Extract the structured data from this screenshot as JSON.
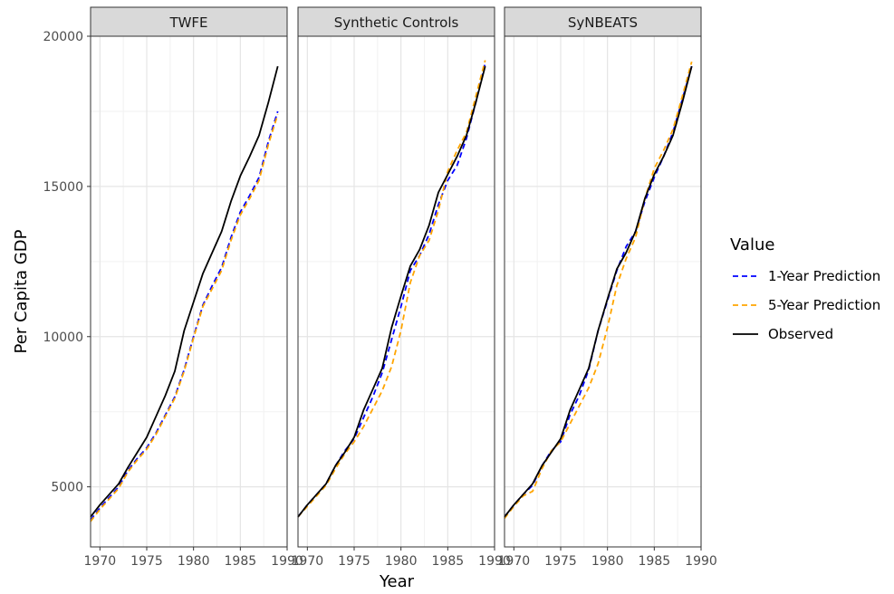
{
  "chart_data": {
    "type": "line",
    "xlabel": "Year",
    "ylabel": "Per Capita GDP",
    "xlim": [
      1969,
      1990
    ],
    "ylim": [
      3000,
      20000
    ],
    "x_ticks": [
      1970,
      1975,
      1980,
      1985,
      1990
    ],
    "y_ticks": [
      5000,
      10000,
      15000,
      20000
    ],
    "grid": true,
    "legend": {
      "title": "Value",
      "position": "right",
      "entries": [
        {
          "label": "1-Year Prediction",
          "color": "#0000ff",
          "dash": "dashed"
        },
        {
          "label": "5-Year Prediction",
          "color": "#ffa500",
          "dash": "dashed"
        },
        {
          "label": "Observed",
          "color": "#000000",
          "dash": "solid"
        }
      ]
    },
    "panels": [
      {
        "title": "TWFE",
        "series": [
          {
            "name": "1-Year Prediction",
            "x": [
              1969,
              1970,
              1971,
              1972,
              1973,
              1974,
              1975,
              1976,
              1977,
              1978,
              1979,
              1980,
              1981,
              1982,
              1983,
              1984,
              1985,
              1986,
              1987,
              1988,
              1989
            ],
            "y": [
              3900,
              4300,
              4650,
              5000,
              5550,
              5950,
              6300,
              6800,
              7400,
              8000,
              8900,
              10000,
              11050,
              11700,
              12300,
              13300,
              14150,
              14700,
              15300,
              16500,
              17500
            ]
          },
          {
            "name": "5-Year Prediction",
            "x": [
              1969,
              1970,
              1971,
              1972,
              1973,
              1974,
              1975,
              1976,
              1977,
              1978,
              1979,
              1980,
              1981,
              1982,
              1983,
              1984,
              1985,
              1986,
              1987,
              1988,
              1989
            ],
            "y": [
              3850,
              4250,
              4600,
              4950,
              5500,
              5900,
              6250,
              6750,
              7350,
              7950,
              8850,
              9950,
              11000,
              11600,
              12200,
              13200,
              14050,
              14600,
              15200,
              16400,
              17400
            ]
          },
          {
            "name": "Observed",
            "x": [
              1969,
              1970,
              1971,
              1972,
              1973,
              1974,
              1975,
              1976,
              1977,
              1978,
              1979,
              1980,
              1981,
              1982,
              1983,
              1984,
              1985,
              1986,
              1987,
              1988,
              1989
            ],
            "y": [
              4000,
              4400,
              4750,
              5100,
              5650,
              6150,
              6650,
              7350,
              8050,
              8850,
              10200,
              11150,
              12100,
              12800,
              13500,
              14500,
              15350,
              16000,
              16700,
              17800,
              19000
            ]
          }
        ]
      },
      {
        "title": "Synthetic Controls",
        "series": [
          {
            "name": "1-Year Prediction",
            "x": [
              1969,
              1970,
              1971,
              1972,
              1973,
              1974,
              1975,
              1976,
              1977,
              1978,
              1979,
              1980,
              1981,
              1982,
              1983,
              1984,
              1985,
              1986,
              1987,
              1988,
              1989
            ],
            "y": [
              4000,
              4400,
              4750,
              5100,
              5700,
              6200,
              6600,
              7300,
              8000,
              8800,
              9900,
              11000,
              12200,
              12700,
              13400,
              14400,
              15200,
              15700,
              16600,
              17800,
              19100
            ]
          },
          {
            "name": "5-Year Prediction",
            "x": [
              1969,
              1970,
              1971,
              1972,
              1973,
              1974,
              1975,
              1976,
              1977,
              1978,
              1979,
              1980,
              1981,
              1982,
              1983,
              1984,
              1985,
              1986,
              1987,
              1988,
              1989
            ],
            "y": [
              4000,
              4350,
              4700,
              5050,
              5600,
              6100,
              6500,
              7000,
              7600,
              8200,
              9000,
              10200,
              11800,
              12700,
              13200,
              14200,
              15500,
              16200,
              16800,
              18000,
              19200
            ]
          },
          {
            "name": "Observed",
            "x": [
              1969,
              1970,
              1971,
              1972,
              1973,
              1974,
              1975,
              1976,
              1977,
              1978,
              1979,
              1980,
              1981,
              1982,
              1983,
              1984,
              1985,
              1986,
              1987,
              1988,
              1989
            ],
            "y": [
              4000,
              4400,
              4750,
              5100,
              5700,
              6150,
              6650,
              7550,
              8250,
              8950,
              10300,
              11350,
              12350,
              12900,
              13700,
              14800,
              15400,
              16000,
              16700,
              17800,
              19000
            ]
          }
        ]
      },
      {
        "title": "SyNBEATS",
        "series": [
          {
            "name": "1-Year Prediction",
            "x": [
              1969,
              1970,
              1971,
              1972,
              1973,
              1974,
              1975,
              1976,
              1977,
              1978,
              1979,
              1980,
              1981,
              1982,
              1983,
              1984,
              1985,
              1986,
              1987,
              1988,
              1989
            ],
            "y": [
              4000,
              4400,
              4750,
              5050,
              5700,
              6200,
              6500,
              7400,
              8050,
              8900,
              10200,
              11200,
              12200,
              13000,
              13500,
              14500,
              15300,
              16000,
              16800,
              17900,
              19000
            ]
          },
          {
            "name": "5-Year Prediction",
            "x": [
              1969,
              1970,
              1971,
              1972,
              1973,
              1974,
              1975,
              1976,
              1977,
              1978,
              1979,
              1980,
              1981,
              1982,
              1983,
              1984,
              1985,
              1986,
              1987,
              1988,
              1989
            ],
            "y": [
              3950,
              4350,
              4700,
              4850,
              5600,
              6200,
              6500,
              7100,
              7700,
              8300,
              9100,
              10300,
              11700,
              12600,
              13300,
              14600,
              15600,
              16200,
              16900,
              18000,
              19150
            ]
          },
          {
            "name": "Observed",
            "x": [
              1969,
              1970,
              1971,
              1972,
              1973,
              1974,
              1975,
              1976,
              1977,
              1978,
              1979,
              1980,
              1981,
              1982,
              1983,
              1984,
              1985,
              1986,
              1987,
              1988,
              1989
            ],
            "y": [
              4000,
              4400,
              4750,
              5100,
              5700,
              6150,
              6600,
              7550,
              8250,
              8950,
              10200,
              11250,
              12250,
              12800,
              13500,
              14600,
              15400,
              16000,
              16700,
              17800,
              19000
            ]
          }
        ]
      }
    ]
  }
}
